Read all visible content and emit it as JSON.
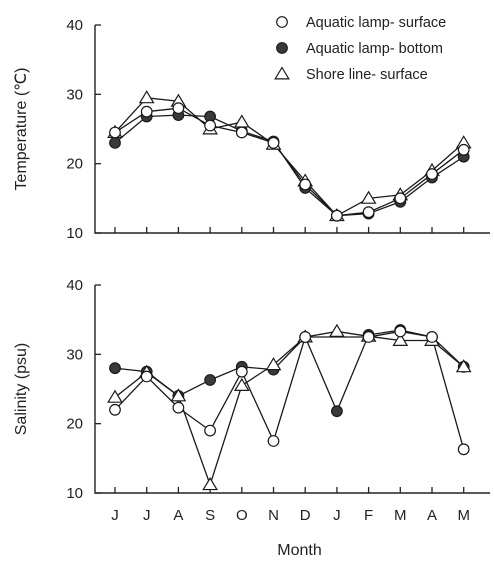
{
  "chart_data": [
    {
      "type": "line",
      "ylabel": "Temperature (℃)",
      "xlabel": "",
      "ylim": [
        10,
        40
      ],
      "yticks": [
        10,
        20,
        30,
        40
      ],
      "categories": [
        "J",
        "J",
        "A",
        "S",
        "O",
        "N",
        "D",
        "J",
        "F",
        "M",
        "A",
        "M"
      ],
      "legend": {
        "placement": "top-right"
      },
      "series": [
        {
          "name": "Aquatic lamp- surface",
          "marker": "open-circle",
          "values": [
            24.5,
            27.5,
            28.0,
            25.5,
            24.5,
            23.0,
            17.0,
            12.5,
            13.0,
            15.0,
            18.5,
            22.0
          ]
        },
        {
          "name": "Aquatic lamp- bottom",
          "marker": "filled-circle",
          "values": [
            23.0,
            26.8,
            27.0,
            26.8,
            24.7,
            23.2,
            16.5,
            12.5,
            12.8,
            14.5,
            18.0,
            21.0
          ]
        },
        {
          "name": "Shore line- surface",
          "marker": "open-triangle",
          "values": [
            24.5,
            29.5,
            29.0,
            25.0,
            26.0,
            22.8,
            17.5,
            12.5,
            15.0,
            15.5,
            19.0,
            23.0
          ]
        }
      ]
    },
    {
      "type": "line",
      "ylabel": "Salinity (psu)",
      "xlabel": "Month",
      "ylim": [
        10,
        40
      ],
      "yticks": [
        10,
        20,
        30,
        40
      ],
      "categories": [
        "J",
        "J",
        "A",
        "S",
        "O",
        "N",
        "D",
        "J",
        "F",
        "M",
        "A",
        "M"
      ],
      "series": [
        {
          "name": "Aquatic lamp- surface",
          "marker": "open-circle",
          "values": [
            22.0,
            26.8,
            22.3,
            19.0,
            27.5,
            17.5,
            32.5,
            null,
            32.5,
            33.3,
            32.5,
            16.3
          ]
        },
        {
          "name": "Aquatic lamp- bottom",
          "marker": "filled-circle",
          "values": [
            28.0,
            27.5,
            24.0,
            26.3,
            28.2,
            27.8,
            32.5,
            21.8,
            32.8,
            33.5,
            32.5,
            28.2
          ]
        },
        {
          "name": "Shore line- surface",
          "marker": "open-triangle",
          "values": [
            23.8,
            27.4,
            24.0,
            11.2,
            25.5,
            28.5,
            32.5,
            33.3,
            32.6,
            32.0,
            32.0,
            28.2
          ]
        }
      ]
    }
  ]
}
